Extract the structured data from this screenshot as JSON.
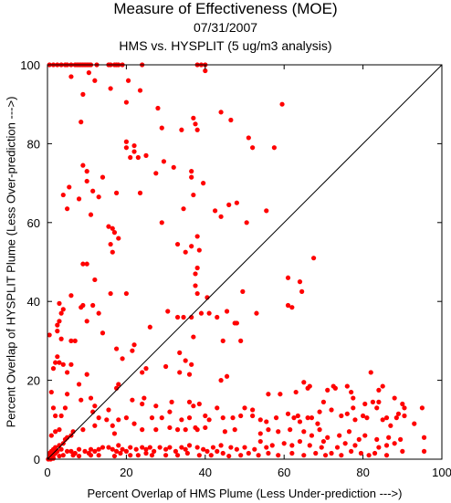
{
  "chart_data": {
    "type": "scatter",
    "title": "Measure of Effectiveness (MOE)",
    "subtitle_date": "07/31/2007",
    "subtitle_analysis": "HMS vs. HYSPLIT  (5 ug/m3 analysis)",
    "xlabel": "Percent Overlap of HMS Plume (Less Under-prediction --->)",
    "ylabel": "Percent Overlap of HYSPLIT Plume (Less Over-prediction --->)",
    "xlim": [
      0,
      100
    ],
    "ylim": [
      0,
      100
    ],
    "xticks": [
      "0",
      "20",
      "40",
      "60",
      "80",
      "100"
    ],
    "yticks": [
      "0",
      "20",
      "40",
      "60",
      "80",
      "100"
    ],
    "grid": false,
    "marker_color": "#ff0000",
    "reference_line": {
      "from": [
        0,
        0
      ],
      "to": [
        100,
        100
      ],
      "color": "#000000"
    },
    "points": [
      [
        0.5,
        100
      ],
      [
        1.5,
        100
      ],
      [
        2.5,
        100
      ],
      [
        3.5,
        100
      ],
      [
        4.5,
        100
      ],
      [
        5,
        100
      ],
      [
        6,
        100
      ],
      [
        7,
        100
      ],
      [
        7.5,
        100
      ],
      [
        8,
        100
      ],
      [
        8.5,
        100
      ],
      [
        9,
        100
      ],
      [
        9.5,
        100
      ],
      [
        10,
        100
      ],
      [
        10.5,
        100
      ],
      [
        11,
        100
      ],
      [
        12.5,
        100
      ],
      [
        15.5,
        100
      ],
      [
        16,
        100
      ],
      [
        17,
        100
      ],
      [
        17.5,
        100
      ],
      [
        18,
        100
      ],
      [
        19,
        100
      ],
      [
        24,
        100
      ],
      [
        38,
        100
      ],
      [
        39,
        100
      ],
      [
        40,
        100
      ],
      [
        6,
        97
      ],
      [
        10.5,
        98
      ],
      [
        12,
        96
      ],
      [
        16,
        94
      ],
      [
        9,
        92.5
      ],
      [
        20.5,
        96
      ],
      [
        23.5,
        93.5
      ],
      [
        40,
        98.5
      ],
      [
        20,
        90.5
      ],
      [
        28,
        89
      ],
      [
        44,
        88
      ],
      [
        59.5,
        90
      ],
      [
        37,
        86.5
      ],
      [
        37.5,
        85
      ],
      [
        46.5,
        86
      ],
      [
        8.5,
        85.5
      ],
      [
        29,
        84
      ],
      [
        34,
        83.5
      ],
      [
        38,
        83.5
      ],
      [
        51,
        81.5
      ],
      [
        52,
        79
      ],
      [
        57.5,
        79
      ],
      [
        20,
        80.5
      ],
      [
        20,
        79
      ],
      [
        22,
        79.5
      ],
      [
        22,
        78
      ],
      [
        23,
        76.5
      ],
      [
        21,
        76.5
      ],
      [
        25,
        77
      ],
      [
        29.5,
        75.5
      ],
      [
        9,
        74.5
      ],
      [
        10,
        73
      ],
      [
        14,
        71.5
      ],
      [
        32,
        74
      ],
      [
        36.5,
        73
      ],
      [
        27.5,
        72.5
      ],
      [
        36.5,
        71.5
      ],
      [
        39.5,
        70
      ],
      [
        10,
        70.5
      ],
      [
        11.5,
        68
      ],
      [
        5.5,
        69
      ],
      [
        4,
        67
      ],
      [
        17.5,
        67.5
      ],
      [
        23.5,
        67.5
      ],
      [
        37,
        67
      ],
      [
        8,
        66
      ],
      [
        13,
        66.5
      ],
      [
        46,
        64.5
      ],
      [
        48,
        65
      ],
      [
        34.5,
        63.5
      ],
      [
        5,
        63.5
      ],
      [
        42.5,
        63
      ],
      [
        44,
        61.5
      ],
      [
        55.5,
        63
      ],
      [
        11,
        62
      ],
      [
        50.5,
        60
      ],
      [
        29,
        60
      ],
      [
        15.5,
        59
      ],
      [
        16.5,
        58.5
      ],
      [
        17,
        57.5
      ],
      [
        18,
        56
      ],
      [
        16,
        54.5
      ],
      [
        16.5,
        52.5
      ],
      [
        33,
        54.5
      ],
      [
        36.5,
        54
      ],
      [
        38,
        56.5
      ],
      [
        35,
        52.5
      ],
      [
        38.5,
        53
      ],
      [
        9,
        49.5
      ],
      [
        10,
        49.5
      ],
      [
        67.5,
        51
      ],
      [
        38,
        48.5
      ],
      [
        37.5,
        47
      ],
      [
        61,
        46
      ],
      [
        64,
        45
      ],
      [
        12,
        45.5
      ],
      [
        37.5,
        44
      ],
      [
        49.5,
        42.5
      ],
      [
        64.5,
        42.5
      ],
      [
        16,
        42
      ],
      [
        20,
        42
      ],
      [
        38,
        42
      ],
      [
        40.5,
        41
      ],
      [
        6,
        41.5
      ],
      [
        3,
        39.5
      ],
      [
        4,
        38
      ],
      [
        11.5,
        39
      ],
      [
        8.5,
        38.5
      ],
      [
        9,
        39
      ],
      [
        3.5,
        37
      ],
      [
        3,
        35
      ],
      [
        2.5,
        34
      ],
      [
        2.5,
        32.5
      ],
      [
        10,
        35
      ],
      [
        13,
        37
      ],
      [
        30.5,
        37.5
      ],
      [
        41,
        37
      ],
      [
        45.5,
        37.5
      ],
      [
        61,
        39
      ],
      [
        62,
        38.5
      ],
      [
        33,
        36
      ],
      [
        34.5,
        36
      ],
      [
        36.5,
        36
      ],
      [
        39,
        37
      ],
      [
        43,
        36
      ],
      [
        47.5,
        34.5
      ],
      [
        48,
        34.5
      ],
      [
        53,
        37
      ],
      [
        26,
        33.5
      ],
      [
        0.5,
        31.5
      ],
      [
        3.5,
        30.5
      ],
      [
        6,
        30
      ],
      [
        7,
        30
      ],
      [
        14,
        32
      ],
      [
        22,
        29
      ],
      [
        37,
        31
      ],
      [
        44.5,
        30
      ],
      [
        49,
        30
      ],
      [
        17.5,
        28
      ],
      [
        19,
        25.5
      ],
      [
        21.5,
        27.5
      ],
      [
        33.5,
        27
      ],
      [
        35,
        25
      ],
      [
        36.5,
        24
      ],
      [
        2.5,
        26
      ],
      [
        3,
        24.5
      ],
      [
        4,
        24
      ],
      [
        2,
        24.5
      ],
      [
        6,
        24
      ],
      [
        1.5,
        23
      ],
      [
        5,
        22
      ],
      [
        24,
        22
      ],
      [
        25,
        23
      ],
      [
        30,
        23.5
      ],
      [
        33.5,
        22
      ],
      [
        36,
        21.5
      ],
      [
        44,
        20
      ],
      [
        45.5,
        21
      ],
      [
        10,
        21.5
      ],
      [
        8,
        19
      ],
      [
        1,
        17
      ],
      [
        5,
        16.5
      ],
      [
        18,
        19
      ],
      [
        17.5,
        18
      ],
      [
        4.5,
        13
      ],
      [
        3.5,
        11
      ],
      [
        1.5,
        13
      ],
      [
        2,
        11
      ],
      [
        8.5,
        15
      ],
      [
        11,
        15.5
      ],
      [
        12,
        13.5
      ],
      [
        15.5,
        12.5
      ],
      [
        11.5,
        12
      ],
      [
        21.5,
        15
      ],
      [
        24,
        14
      ],
      [
        24.5,
        15.5
      ],
      [
        27.5,
        13.5
      ],
      [
        31.5,
        14.5
      ],
      [
        31,
        12
      ],
      [
        36,
        14.5
      ],
      [
        37,
        13.5
      ],
      [
        38.5,
        14
      ],
      [
        43,
        13
      ],
      [
        50,
        13
      ],
      [
        52,
        12.5
      ],
      [
        56,
        16.5
      ],
      [
        59,
        16.5
      ],
      [
        63,
        17
      ],
      [
        65,
        19.5
      ],
      [
        66,
        18
      ],
      [
        66.5,
        18.5
      ],
      [
        71,
        17.5
      ],
      [
        72.5,
        18.5
      ],
      [
        73,
        18
      ],
      [
        76,
        18.5
      ],
      [
        77,
        17
      ],
      [
        77.5,
        15.5
      ],
      [
        82,
        22
      ],
      [
        84,
        17.5
      ],
      [
        85,
        18.5
      ],
      [
        82.5,
        14.5
      ],
      [
        83.5,
        13
      ],
      [
        84,
        14.5
      ],
      [
        88,
        15.5
      ],
      [
        90,
        14
      ],
      [
        90.5,
        13
      ],
      [
        95,
        13
      ],
      [
        70,
        14.5
      ],
      [
        72,
        12.5
      ],
      [
        69,
        12
      ],
      [
        74.5,
        11
      ],
      [
        76,
        11.5
      ],
      [
        80,
        11
      ],
      [
        77.5,
        13
      ],
      [
        80.5,
        14
      ],
      [
        78,
        10
      ],
      [
        81,
        10.5
      ],
      [
        85,
        10
      ],
      [
        86,
        10.5
      ],
      [
        88.5,
        10.5
      ],
      [
        89,
        11.5
      ],
      [
        90.5,
        11
      ],
      [
        87,
        8.5
      ],
      [
        93,
        9
      ],
      [
        61,
        11.5
      ],
      [
        62.5,
        10.5
      ],
      [
        63.5,
        11
      ],
      [
        64,
        9.5
      ],
      [
        66,
        10.5
      ],
      [
        67,
        10.5
      ],
      [
        68.5,
        9
      ],
      [
        58,
        10.5
      ],
      [
        54,
        10
      ],
      [
        55.5,
        9.5
      ],
      [
        52,
        11
      ],
      [
        49,
        11
      ],
      [
        47,
        10.5
      ],
      [
        44.5,
        10.5
      ],
      [
        41,
        10
      ],
      [
        40,
        11
      ],
      [
        36,
        10.5
      ],
      [
        34,
        10
      ],
      [
        29,
        10.5
      ],
      [
        26.5,
        10.5
      ],
      [
        20,
        10.5
      ],
      [
        18,
        10
      ],
      [
        16.5,
        8.5
      ],
      [
        22,
        9
      ],
      [
        15,
        10
      ],
      [
        13,
        10.5
      ],
      [
        12,
        8.5
      ],
      [
        3,
        7.5
      ],
      [
        2,
        7
      ],
      [
        1,
        6
      ],
      [
        9,
        7.5
      ],
      [
        17,
        6.5
      ],
      [
        24,
        7.5
      ],
      [
        27.5,
        7.5
      ],
      [
        31,
        8
      ],
      [
        33,
        7.5
      ],
      [
        35,
        7.5
      ],
      [
        37.5,
        8
      ],
      [
        38,
        7.5
      ],
      [
        40,
        8
      ],
      [
        45,
        7
      ],
      [
        47.5,
        7.5
      ],
      [
        54,
        6.5
      ],
      [
        56,
        7.5
      ],
      [
        58.5,
        7
      ],
      [
        61.5,
        7.5
      ],
      [
        65,
        7
      ],
      [
        67,
        6
      ],
      [
        69,
        7.5
      ],
      [
        71,
        5.5
      ],
      [
        74,
        6
      ],
      [
        76.5,
        7
      ],
      [
        79,
        5
      ],
      [
        80.5,
        6
      ],
      [
        83.5,
        5
      ],
      [
        86.5,
        5.5
      ],
      [
        89.5,
        5
      ],
      [
        95.5,
        5.5
      ],
      [
        88,
        4
      ],
      [
        86,
        3.5
      ],
      [
        84,
        3
      ],
      [
        78,
        3.5
      ],
      [
        75.5,
        4
      ],
      [
        73.5,
        3
      ],
      [
        70,
        4.5
      ],
      [
        69.5,
        3
      ],
      [
        66.5,
        3.5
      ],
      [
        64,
        4.5
      ],
      [
        62,
        3.5
      ],
      [
        60,
        4
      ],
      [
        57,
        3.5
      ],
      [
        55.5,
        3
      ],
      [
        54,
        4.5
      ],
      [
        52.5,
        2.5
      ],
      [
        50,
        3
      ],
      [
        48,
        2.5
      ],
      [
        46.5,
        3
      ],
      [
        44,
        3.5
      ],
      [
        43,
        2
      ],
      [
        42,
        3
      ],
      [
        40.5,
        2
      ],
      [
        39.5,
        2.5
      ],
      [
        38,
        3
      ],
      [
        36,
        3.5
      ],
      [
        35,
        2.5
      ],
      [
        34,
        3
      ],
      [
        32.5,
        2
      ],
      [
        31,
        3
      ],
      [
        30,
        2.5
      ],
      [
        28.5,
        3
      ],
      [
        27,
        2
      ],
      [
        26,
        3
      ],
      [
        25,
        2.5
      ],
      [
        24,
        3
      ],
      [
        22.5,
        2.5
      ],
      [
        21,
        3
      ],
      [
        20,
        2
      ],
      [
        19,
        2.5
      ],
      [
        18,
        3.5
      ],
      [
        17.5,
        2
      ],
      [
        16.5,
        2.5
      ],
      [
        15.5,
        3
      ],
      [
        14,
        3
      ],
      [
        13,
        2.5
      ],
      [
        12,
        2
      ],
      [
        11,
        2.5
      ],
      [
        10.5,
        1.5
      ],
      [
        9.5,
        2
      ],
      [
        8,
        2.5
      ],
      [
        7,
        1.5
      ],
      [
        6,
        2
      ],
      [
        5,
        2
      ],
      [
        3.5,
        2.5
      ],
      [
        2.5,
        2
      ],
      [
        2,
        1.5
      ],
      [
        1.5,
        1
      ],
      [
        1,
        0.5
      ],
      [
        0.5,
        0.5
      ],
      [
        0.5,
        1.5
      ],
      [
        1,
        2
      ],
      [
        1.5,
        2.5
      ],
      [
        2,
        3
      ],
      [
        3,
        3.5
      ],
      [
        4,
        4
      ],
      [
        4.5,
        5
      ],
      [
        5,
        5.5
      ],
      [
        6,
        6
      ],
      [
        6.5,
        7
      ],
      [
        0.2,
        0
      ],
      [
        0.8,
        0
      ],
      [
        1.5,
        0.2
      ],
      [
        3,
        0.8
      ],
      [
        4,
        1
      ],
      [
        6.5,
        1
      ],
      [
        8,
        0.8
      ],
      [
        11,
        1
      ],
      [
        13,
        1
      ],
      [
        17,
        0.8
      ],
      [
        18.5,
        1.5
      ],
      [
        21,
        1
      ],
      [
        23,
        1
      ],
      [
        25,
        1.5
      ],
      [
        26.5,
        1
      ],
      [
        30,
        1
      ],
      [
        33,
        1
      ],
      [
        35.5,
        1.5
      ],
      [
        38.5,
        1
      ],
      [
        41.5,
        1
      ],
      [
        44.5,
        1.5
      ],
      [
        46,
        0.8
      ],
      [
        49,
        1
      ],
      [
        51,
        1.5
      ],
      [
        53.5,
        1
      ],
      [
        56,
        1.5
      ],
      [
        58.5,
        1
      ],
      [
        62,
        1.5
      ],
      [
        65,
        1
      ],
      [
        68,
        1.5
      ],
      [
        70.5,
        1
      ],
      [
        72,
        1.5
      ],
      [
        74.5,
        1
      ],
      [
        77,
        2
      ],
      [
        79.5,
        1.5
      ],
      [
        81.5,
        1
      ],
      [
        83,
        1.5
      ],
      [
        86,
        1
      ],
      [
        90,
        2
      ],
      [
        95.5,
        2
      ]
    ]
  }
}
